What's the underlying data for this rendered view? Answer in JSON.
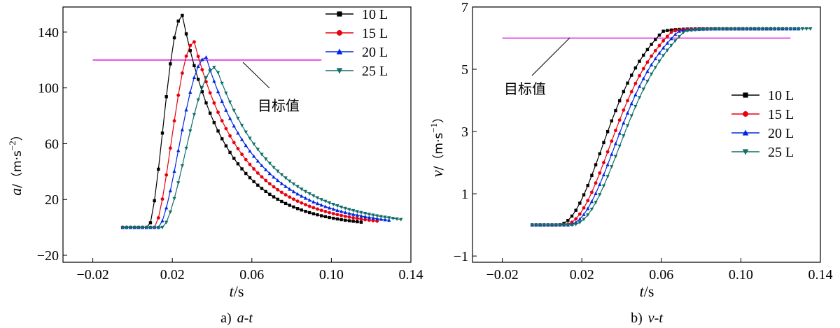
{
  "chart_data": [
    {
      "id": "a",
      "type": "line",
      "caption": "a)",
      "caption_title": "a-t",
      "xlabel_var": "t",
      "xlabel_unit": "/s",
      "ylabel_var": "a",
      "ylabel_unit": "/（m·s",
      "ylabel_sup": "−2",
      "ylabel_close": "）",
      "xlim": [
        -0.035,
        0.14
      ],
      "ylim": [
        -25,
        158
      ],
      "xticks": [
        -0.02,
        0.02,
        0.06,
        0.1,
        0.14
      ],
      "xtick_labels": [
        "−0.02",
        "0.02",
        "0.06",
        "0.10",
        "0.14"
      ],
      "yticks": [
        -20,
        20,
        60,
        100,
        140
      ],
      "ytick_labels": [
        "−20",
        "20",
        "60",
        "100",
        "140"
      ],
      "target": {
        "label": "目标值",
        "value": 120,
        "x_range": [
          -0.02,
          0.095
        ]
      },
      "legend_position": "top-right",
      "series": [
        {
          "name": "10 L",
          "color": "#000000",
          "marker": "square",
          "t0": 0.008,
          "t_end": 0.116,
          "peak": 152,
          "t_peak": 0.025,
          "tau": 0.025
        },
        {
          "name": "15 L",
          "color": "#e8000b",
          "marker": "circle",
          "t0": 0.011,
          "t_end": 0.123,
          "peak": 133,
          "t_peak": 0.031,
          "tau": 0.028
        },
        {
          "name": "20 L",
          "color": "#0028e0",
          "marker": "triangle-up",
          "t0": 0.013,
          "t_end": 0.13,
          "peak": 122,
          "t_peak": 0.037,
          "tau": 0.03
        },
        {
          "name": "25 L",
          "color": "#0f6e68",
          "marker": "triangle-down",
          "t0": 0.015,
          "t_end": 0.135,
          "peak": 115,
          "t_peak": 0.042,
          "tau": 0.032
        }
      ]
    },
    {
      "id": "b",
      "type": "line",
      "caption": "b)",
      "caption_title": "v-t",
      "xlabel_var": "t",
      "xlabel_unit": "/s",
      "ylabel_var": "v",
      "ylabel_unit": "/（m·s",
      "ylabel_sup": "−1",
      "ylabel_close": "）",
      "xlim": [
        -0.035,
        0.14
      ],
      "ylim": [
        -1.2,
        7
      ],
      "xticks": [
        -0.02,
        0.02,
        0.06,
        0.1,
        0.14
      ],
      "xtick_labels": [
        "−0.02",
        "0.02",
        "0.06",
        "0.10",
        "0.14"
      ],
      "yticks": [
        -1,
        1,
        3,
        5,
        7
      ],
      "ytick_labels": [
        "−1",
        "1",
        "3",
        "5",
        "7"
      ],
      "target": {
        "label": "目标值",
        "value": 6.0,
        "x_range": [
          -0.02,
          0.125
        ]
      },
      "legend_position": "center-right",
      "series": [
        {
          "name": "10 L",
          "color": "#000000",
          "marker": "square",
          "t0": 0.008,
          "t_end": 0.116,
          "v_final": 6.3
        },
        {
          "name": "15 L",
          "color": "#e8000b",
          "marker": "circle",
          "t0": 0.011,
          "t_end": 0.123,
          "v_final": 6.3
        },
        {
          "name": "20 L",
          "color": "#0028e0",
          "marker": "triangle-up",
          "t0": 0.013,
          "t_end": 0.13,
          "v_final": 6.3
        },
        {
          "name": "25 L",
          "color": "#0f6e68",
          "marker": "triangle-down",
          "t0": 0.015,
          "t_end": 0.135,
          "v_final": 6.3
        }
      ]
    }
  ]
}
